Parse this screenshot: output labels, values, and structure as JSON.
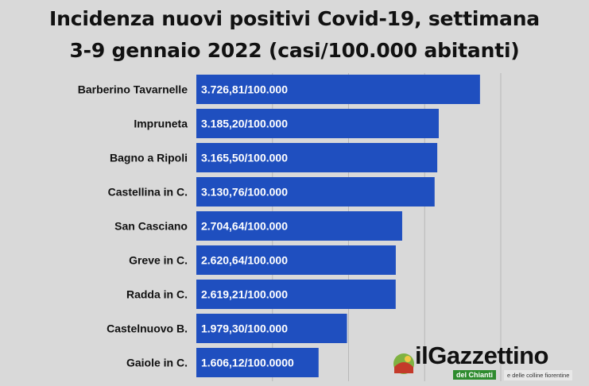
{
  "title_line1": "Incidenza nuovi positivi Covid-19, settimana",
  "title_line2": "3-9 gennaio 2022 (casi/100.000 abitanti)",
  "chart_data": {
    "type": "bar",
    "orientation": "horizontal",
    "categories": [
      "Barberino Tavarnelle",
      "Impruneta",
      "Bagno a Ripoli",
      "Castellina in C.",
      "San Casciano",
      "Greve in C.",
      "Radda in C.",
      "Castelnuovo B.",
      "Gaiole in C."
    ],
    "values": [
      3726.81,
      3185.2,
      3165.5,
      3130.76,
      2704.64,
      2620.64,
      2619.21,
      1979.3,
      1606.12
    ],
    "data_labels": [
      "3.726,81/100.000",
      "3.185,20/100.000",
      "3.165,50/100.000",
      "3.130,76/100.000",
      "2.704,64/100.000",
      "2.620,64/100.000",
      "2.619,21/100.000",
      "1.979,30/100.000",
      "1.606,12/100.0000"
    ],
    "xlim": [
      0,
      4000
    ],
    "grid": true,
    "bar_color": "#1f4fbf"
  },
  "logo": {
    "name": "ilGazzettino",
    "sub1": "del Chianti",
    "sub2": "e delle colline fiorentine"
  }
}
